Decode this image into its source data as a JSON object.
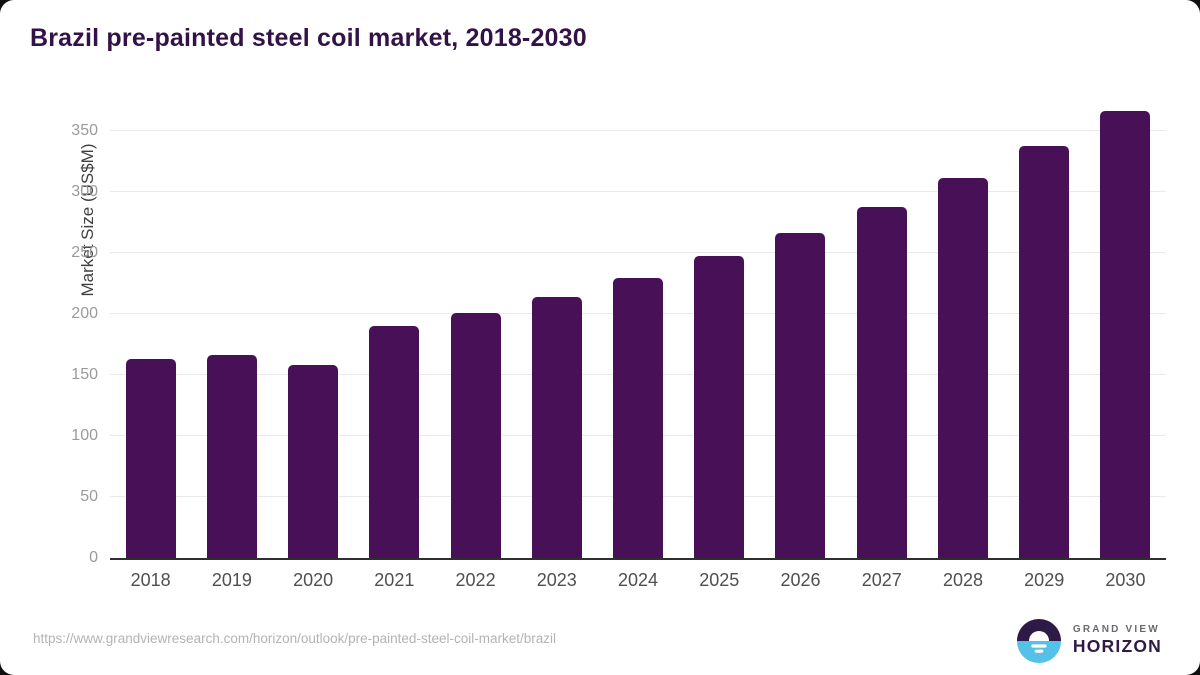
{
  "title": "Brazil pre-painted steel coil market, 2018-2030",
  "chart_data": {
    "type": "bar",
    "title": "Brazil pre-painted steel coil market, 2018-2030",
    "categories": [
      "2018",
      "2019",
      "2020",
      "2021",
      "2022",
      "2023",
      "2024",
      "2025",
      "2026",
      "2027",
      "2028",
      "2029",
      "2030"
    ],
    "values": [
      163,
      166,
      158,
      190,
      201,
      214,
      229,
      247,
      266,
      287,
      311,
      337,
      366
    ],
    "xlabel": "",
    "ylabel": "Market Size (US$M)",
    "ylim": [
      0,
      375
    ],
    "yticks": [
      0,
      50,
      100,
      150,
      200,
      250,
      300,
      350
    ],
    "grid": true,
    "legend": "none",
    "bar_color": "#481056"
  },
  "footer": {
    "source_url": "https://www.grandviewresearch.com/horizon/outlook/pre-painted-steel-coil-market/brazil",
    "logo": {
      "line1": "GRAND VIEW",
      "line2": "HORIZON",
      "icon": "horizon-sunrise-circle",
      "icon_dark": "#2e1a47",
      "icon_blue": "#56c1e8"
    }
  },
  "colors": {
    "title_text": "#331247",
    "bar": "#481056",
    "y_tick_text": "#9b9b9b",
    "x_tick_text": "#4f4f4f",
    "gridline": "#e9e9e9",
    "axis_line": "#2f2f2f",
    "url_text": "#b3b3b3",
    "background": "#ffffff"
  }
}
